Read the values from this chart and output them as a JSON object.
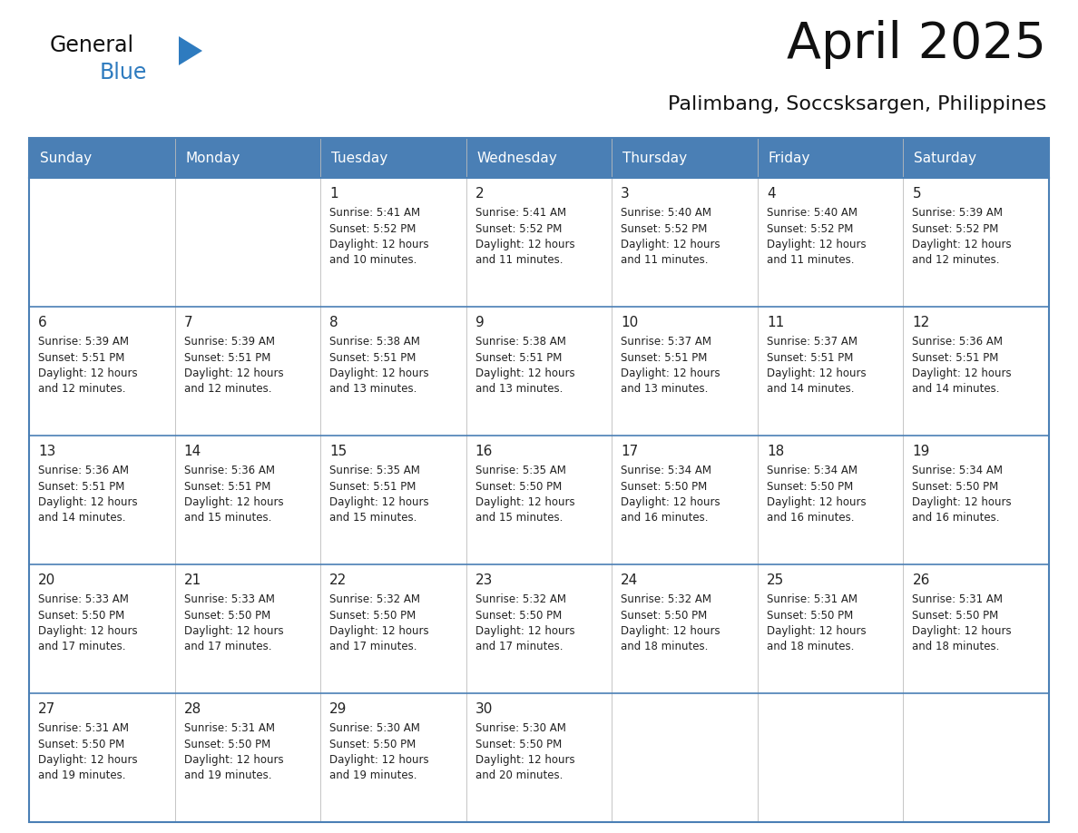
{
  "title": "April 2025",
  "subtitle": "Palimbang, Soccsksargen, Philippines",
  "days_of_week": [
    "Sunday",
    "Monday",
    "Tuesday",
    "Wednesday",
    "Thursday",
    "Friday",
    "Saturday"
  ],
  "header_bg": "#4a7fb5",
  "header_text": "#ffffff",
  "cell_bg": "#ffffff",
  "row_border_color": "#4a7fb5",
  "outer_border_color": "#4a7fb5",
  "text_color": "#222222",
  "title_color": "#111111",
  "subtitle_color": "#111111",
  "logo_general_color": "#111111",
  "logo_blue_color": "#2e7bbf",
  "logo_triangle_color": "#2e7bbf",
  "weeks": [
    [
      {
        "day": null,
        "text": ""
      },
      {
        "day": null,
        "text": ""
      },
      {
        "day": 1,
        "text": "Sunrise: 5:41 AM\nSunset: 5:52 PM\nDaylight: 12 hours\nand 10 minutes."
      },
      {
        "day": 2,
        "text": "Sunrise: 5:41 AM\nSunset: 5:52 PM\nDaylight: 12 hours\nand 11 minutes."
      },
      {
        "day": 3,
        "text": "Sunrise: 5:40 AM\nSunset: 5:52 PM\nDaylight: 12 hours\nand 11 minutes."
      },
      {
        "day": 4,
        "text": "Sunrise: 5:40 AM\nSunset: 5:52 PM\nDaylight: 12 hours\nand 11 minutes."
      },
      {
        "day": 5,
        "text": "Sunrise: 5:39 AM\nSunset: 5:52 PM\nDaylight: 12 hours\nand 12 minutes."
      }
    ],
    [
      {
        "day": 6,
        "text": "Sunrise: 5:39 AM\nSunset: 5:51 PM\nDaylight: 12 hours\nand 12 minutes."
      },
      {
        "day": 7,
        "text": "Sunrise: 5:39 AM\nSunset: 5:51 PM\nDaylight: 12 hours\nand 12 minutes."
      },
      {
        "day": 8,
        "text": "Sunrise: 5:38 AM\nSunset: 5:51 PM\nDaylight: 12 hours\nand 13 minutes."
      },
      {
        "day": 9,
        "text": "Sunrise: 5:38 AM\nSunset: 5:51 PM\nDaylight: 12 hours\nand 13 minutes."
      },
      {
        "day": 10,
        "text": "Sunrise: 5:37 AM\nSunset: 5:51 PM\nDaylight: 12 hours\nand 13 minutes."
      },
      {
        "day": 11,
        "text": "Sunrise: 5:37 AM\nSunset: 5:51 PM\nDaylight: 12 hours\nand 14 minutes."
      },
      {
        "day": 12,
        "text": "Sunrise: 5:36 AM\nSunset: 5:51 PM\nDaylight: 12 hours\nand 14 minutes."
      }
    ],
    [
      {
        "day": 13,
        "text": "Sunrise: 5:36 AM\nSunset: 5:51 PM\nDaylight: 12 hours\nand 14 minutes."
      },
      {
        "day": 14,
        "text": "Sunrise: 5:36 AM\nSunset: 5:51 PM\nDaylight: 12 hours\nand 15 minutes."
      },
      {
        "day": 15,
        "text": "Sunrise: 5:35 AM\nSunset: 5:51 PM\nDaylight: 12 hours\nand 15 minutes."
      },
      {
        "day": 16,
        "text": "Sunrise: 5:35 AM\nSunset: 5:50 PM\nDaylight: 12 hours\nand 15 minutes."
      },
      {
        "day": 17,
        "text": "Sunrise: 5:34 AM\nSunset: 5:50 PM\nDaylight: 12 hours\nand 16 minutes."
      },
      {
        "day": 18,
        "text": "Sunrise: 5:34 AM\nSunset: 5:50 PM\nDaylight: 12 hours\nand 16 minutes."
      },
      {
        "day": 19,
        "text": "Sunrise: 5:34 AM\nSunset: 5:50 PM\nDaylight: 12 hours\nand 16 minutes."
      }
    ],
    [
      {
        "day": 20,
        "text": "Sunrise: 5:33 AM\nSunset: 5:50 PM\nDaylight: 12 hours\nand 17 minutes."
      },
      {
        "day": 21,
        "text": "Sunrise: 5:33 AM\nSunset: 5:50 PM\nDaylight: 12 hours\nand 17 minutes."
      },
      {
        "day": 22,
        "text": "Sunrise: 5:32 AM\nSunset: 5:50 PM\nDaylight: 12 hours\nand 17 minutes."
      },
      {
        "day": 23,
        "text": "Sunrise: 5:32 AM\nSunset: 5:50 PM\nDaylight: 12 hours\nand 17 minutes."
      },
      {
        "day": 24,
        "text": "Sunrise: 5:32 AM\nSunset: 5:50 PM\nDaylight: 12 hours\nand 18 minutes."
      },
      {
        "day": 25,
        "text": "Sunrise: 5:31 AM\nSunset: 5:50 PM\nDaylight: 12 hours\nand 18 minutes."
      },
      {
        "day": 26,
        "text": "Sunrise: 5:31 AM\nSunset: 5:50 PM\nDaylight: 12 hours\nand 18 minutes."
      }
    ],
    [
      {
        "day": 27,
        "text": "Sunrise: 5:31 AM\nSunset: 5:50 PM\nDaylight: 12 hours\nand 19 minutes."
      },
      {
        "day": 28,
        "text": "Sunrise: 5:31 AM\nSunset: 5:50 PM\nDaylight: 12 hours\nand 19 minutes."
      },
      {
        "day": 29,
        "text": "Sunrise: 5:30 AM\nSunset: 5:50 PM\nDaylight: 12 hours\nand 19 minutes."
      },
      {
        "day": 30,
        "text": "Sunrise: 5:30 AM\nSunset: 5:50 PM\nDaylight: 12 hours\nand 20 minutes."
      },
      {
        "day": null,
        "text": ""
      },
      {
        "day": null,
        "text": ""
      },
      {
        "day": null,
        "text": ""
      }
    ]
  ]
}
